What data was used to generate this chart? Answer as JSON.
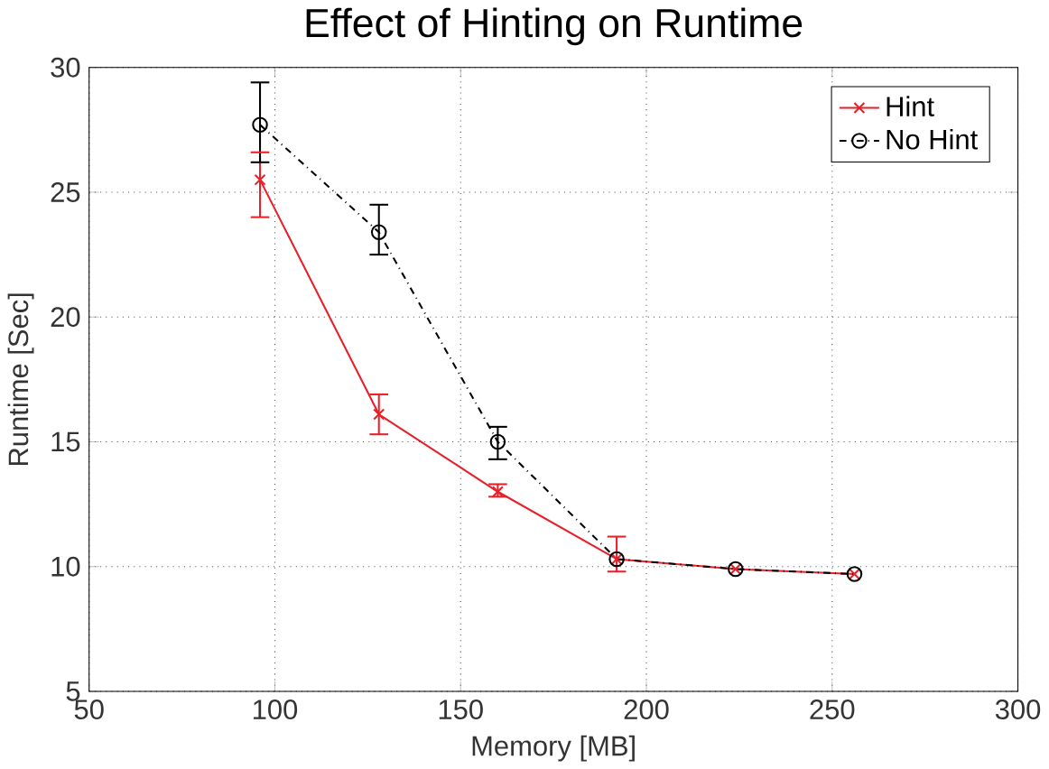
{
  "chart_data": {
    "type": "line",
    "title": "Effect of Hinting on Runtime",
    "xlabel": "Memory [MB]",
    "ylabel": "Runtime [Sec]",
    "xlim": [
      50,
      300
    ],
    "xticks": [
      50,
      100,
      150,
      200,
      250,
      300
    ],
    "ylim": [
      5,
      30
    ],
    "yticks": [
      5,
      10,
      15,
      20,
      25,
      30
    ],
    "grid": true,
    "legend": "top right",
    "series": [
      {
        "name": "Hint",
        "color": "#e8202a",
        "marker": "cross",
        "line_style": "solid",
        "x": [
          96,
          128,
          160,
          192,
          224,
          256
        ],
        "values": [
          25.5,
          16.1,
          13.0,
          10.3,
          9.9,
          9.7
        ],
        "errors": [
          [
            24.0,
            26.6
          ],
          [
            15.3,
            16.9
          ],
          [
            12.8,
            13.3
          ],
          [
            9.8,
            11.2
          ],
          null,
          null
        ]
      },
      {
        "name": "No Hint",
        "color": "#000000",
        "marker": "circle",
        "line_style": "dashed",
        "x": [
          96,
          128,
          160,
          192,
          224,
          256
        ],
        "values": [
          27.7,
          23.4,
          15.0,
          10.3,
          9.9,
          9.7
        ],
        "errors": [
          [
            26.2,
            29.4
          ],
          [
            22.5,
            24.5
          ],
          [
            14.3,
            15.6
          ],
          null,
          null,
          null
        ]
      }
    ]
  }
}
